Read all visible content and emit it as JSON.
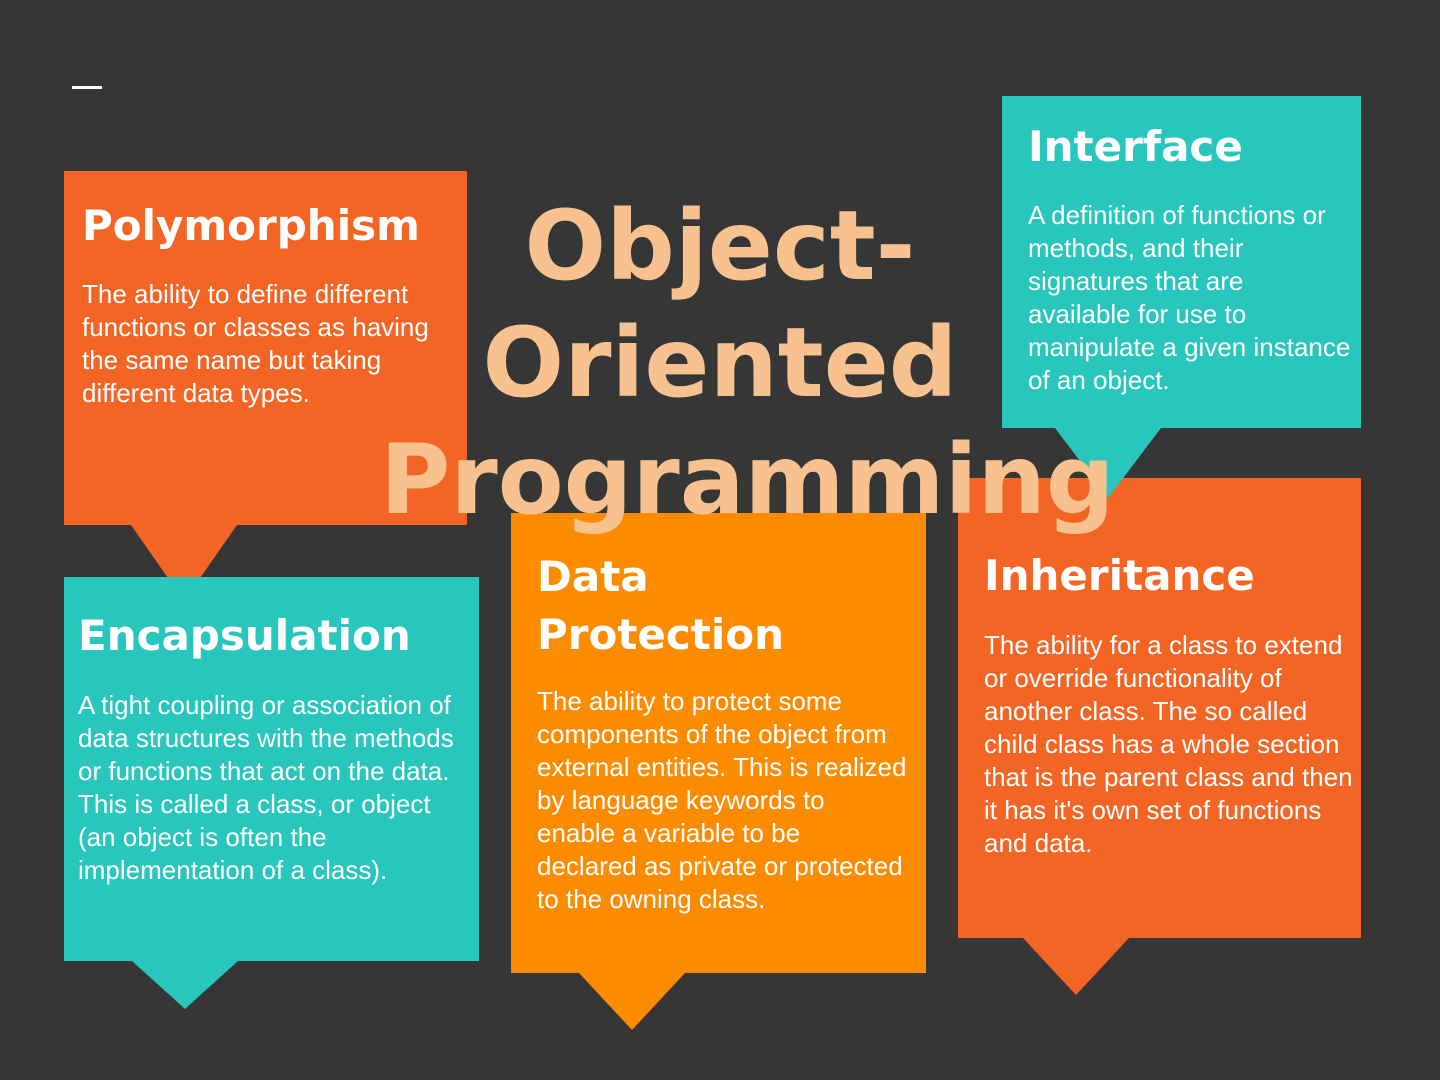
{
  "title": {
    "line1": "Object-",
    "line2": "Oriented",
    "line3": "Programming"
  },
  "cards": {
    "polymorphism": {
      "heading": "Polymorphism",
      "body": "The ability to define different functions or classes as having the same name but taking different data types."
    },
    "interface": {
      "heading": "Interface",
      "body": "A definition of functions or methods, and their signatures that are available for use to manipulate a given instance of an object."
    },
    "encapsulation": {
      "heading": "Encapsulation",
      "body": "A tight coupling or association of data structures with the methods or functions that act on the data. This is called a class, or object (an object is often the implementation of a class)."
    },
    "data_protection": {
      "heading_line1": "Data",
      "heading_line2": "Protection",
      "body": "The ability to protect some components of the object from external entities. This is realized by language keywords to enable a variable to be declared as private or protected to the owning class."
    },
    "inheritance": {
      "heading": "Inheritance",
      "body": "The ability for a class to extend or override functionality of another class. The so called child class has a whole section that is the parent class and then it has it's own set of functions and data."
    }
  },
  "colors": {
    "background": "#363636",
    "orange_red": "#f26524",
    "teal": "#28c6bd",
    "orange": "#fb8b00",
    "title": "#f8c290"
  }
}
